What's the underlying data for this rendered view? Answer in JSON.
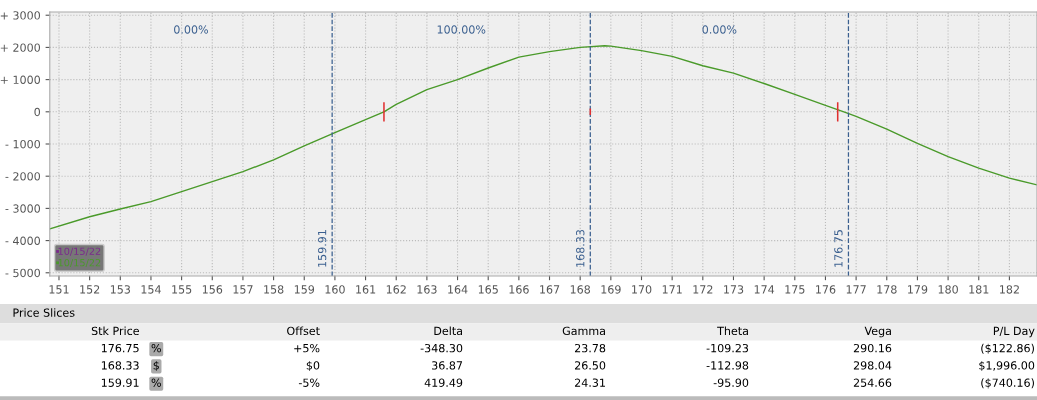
{
  "chart_data": [
    {
      "type": "line",
      "xlim": [
        150.7,
        182.9
      ],
      "ylim": [
        -5100,
        3100
      ],
      "xticks": [
        151,
        152,
        153,
        154,
        155,
        156,
        157,
        158,
        159,
        160,
        161,
        162,
        163,
        164,
        165,
        166,
        167,
        168,
        169,
        170,
        171,
        172,
        173,
        174,
        175,
        176,
        177,
        178,
        179,
        180,
        181,
        182
      ],
      "yticks": [
        {
          "value": 3000,
          "label": "+ 3000"
        },
        {
          "value": 2000,
          "label": "+ 2000"
        },
        {
          "value": 1000,
          "label": "+ 1000"
        },
        0,
        {
          "value": -1000,
          "label": "- 1000"
        },
        {
          "value": -2000,
          "label": "- 2000"
        },
        {
          "value": -3000,
          "label": "- 3000"
        },
        {
          "value": -4000,
          "label": "- 4000"
        },
        {
          "value": -5000,
          "label": "- 5000"
        }
      ],
      "grid": true,
      "legend": "bottom left",
      "series": [
        {
          "name": "10/15/22",
          "color": "#7b2a8c",
          "type": "line"
        },
        {
          "name": "10/15/22",
          "color": "#4a9a2a",
          "x": [
            150.7,
            152,
            153,
            154,
            155,
            156,
            157,
            158,
            159,
            160,
            161,
            161.6,
            162,
            163,
            164,
            165,
            166,
            167,
            168,
            168.8,
            169,
            170,
            171,
            172,
            173,
            174,
            175,
            176,
            176.6,
            177,
            178,
            179,
            180,
            181,
            182,
            182.9
          ],
          "values": [
            -3640,
            -3260,
            -3020,
            -2790,
            -2480,
            -2170,
            -1860,
            -1490,
            -1060,
            -650,
            -240,
            0,
            230,
            690,
            1000,
            1360,
            1700,
            1870,
            2000,
            2050,
            2040,
            1900,
            1720,
            1430,
            1200,
            880,
            540,
            200,
            0,
            -140,
            -540,
            -980,
            -1390,
            -1750,
            -2060,
            -2270
          ]
        },
        {
          "type": "bar",
          "color": "#e03030",
          "x": [
            161.6,
            168.33,
            176.4
          ],
          "values": [
            600,
            200,
            600
          ],
          "base": [
            -300,
            -100,
            -300
          ]
        }
      ],
      "ref_lines": [
        {
          "axis": "x",
          "value": 159.91,
          "label": "159.91",
          "color": "#3a5f8f",
          "line_style": "dashed"
        },
        {
          "axis": "x",
          "value": 168.33,
          "label": "168.33",
          "color": "#3a5f8f",
          "line_style": "dashed"
        },
        {
          "axis": "x",
          "value": 176.75,
          "label": "176.75",
          "color": "#3a5f8f",
          "line_style": "dashed"
        }
      ],
      "annotations": [
        "0.00%",
        "100.00%",
        "0.00%"
      ]
    },
    {
      "type": "other",
      "title": "Price Slices",
      "categories": [
        "Stk Price",
        null,
        "Offset",
        "Delta",
        "Gamma",
        "Theta",
        "Vega",
        "P/L Day"
      ],
      "annotations": [
        "176.75",
        "%",
        "+5%",
        "-348.30",
        "23.78",
        "-109.23",
        "290.16",
        "($122.86)",
        "168.33",
        "$",
        "$0",
        "36.87",
        "26.50",
        "-112.98",
        "298.04",
        "$1,996.00",
        "159.91",
        "%",
        "-5%",
        "419.49",
        "24.31",
        "-95.90",
        "254.66",
        "($740.16)"
      ]
    }
  ]
}
